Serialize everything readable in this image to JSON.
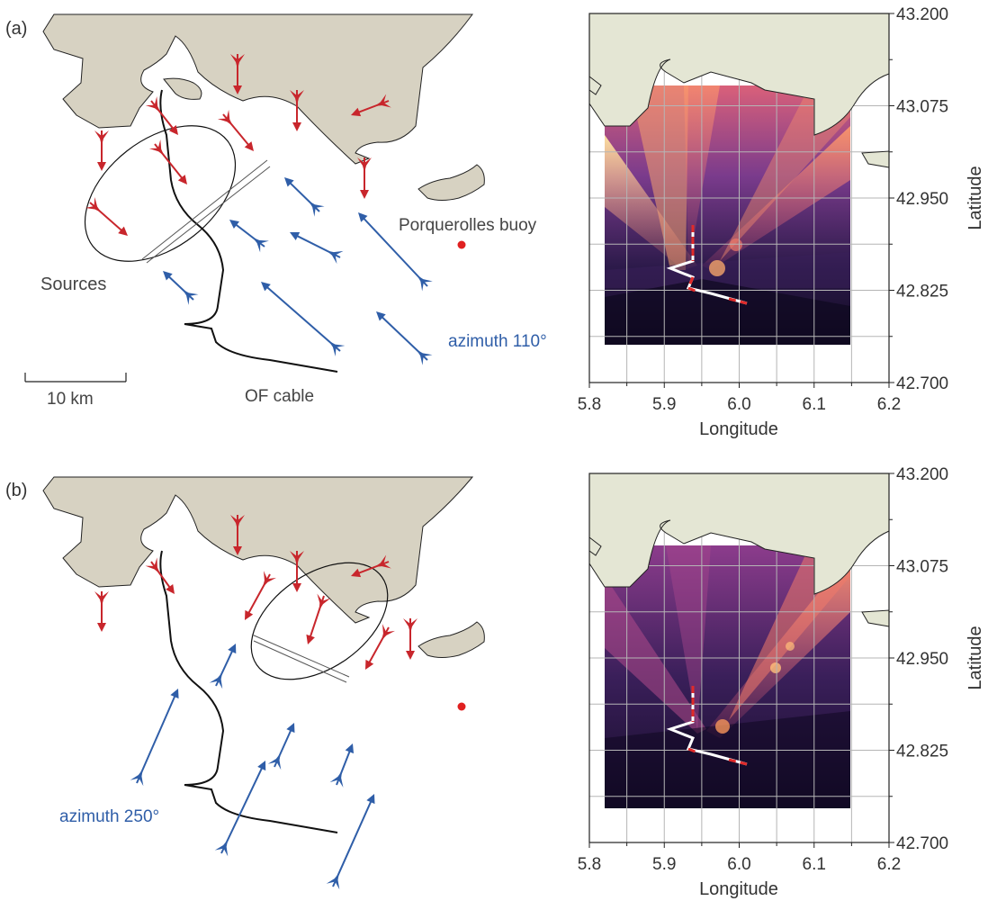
{
  "colors": {
    "land": "#d7d2c2",
    "map_land": "#e4e6d4",
    "coast": "#222222",
    "red_arrow": "#c8262c",
    "blue_arrow": "#2f5ea8",
    "buoy": "#e02020",
    "grid": "#b5b5b5"
  },
  "panels": [
    {
      "label": "(a)",
      "sources_label": "Sources",
      "scale_label": "10 km",
      "cable_label": "OF cable",
      "buoy_label": "Porquerolles buoy",
      "azimuth_label": "azimuth 110°",
      "map": {
        "x_ticks": [
          "5.8",
          "5.9",
          "6.0",
          "6.1",
          "6.2"
        ],
        "y_ticks": [
          "43.200",
          "43.075",
          "42.950",
          "42.825",
          "42.700"
        ],
        "xlabel": "Longitude",
        "ylabel": "Latitude"
      }
    },
    {
      "label": "(b)",
      "azimuth_label": "azimuth 250°",
      "map": {
        "x_ticks": [
          "5.8",
          "5.9",
          "6.0",
          "6.1",
          "6.2"
        ],
        "y_ticks": [
          "43.200",
          "43.075",
          "42.950",
          "42.825",
          "42.700"
        ],
        "xlabel": "Longitude",
        "ylabel": "Latitude"
      }
    }
  ]
}
